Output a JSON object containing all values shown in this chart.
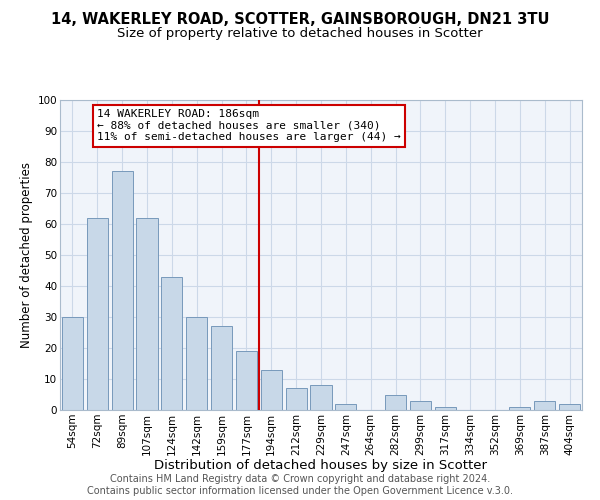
{
  "title": "14, WAKERLEY ROAD, SCOTTER, GAINSBOROUGH, DN21 3TU",
  "subtitle": "Size of property relative to detached houses in Scotter",
  "xlabel": "Distribution of detached houses by size in Scotter",
  "ylabel": "Number of detached properties",
  "bar_labels": [
    "54sqm",
    "72sqm",
    "89sqm",
    "107sqm",
    "124sqm",
    "142sqm",
    "159sqm",
    "177sqm",
    "194sqm",
    "212sqm",
    "229sqm",
    "247sqm",
    "264sqm",
    "282sqm",
    "299sqm",
    "317sqm",
    "334sqm",
    "352sqm",
    "369sqm",
    "387sqm",
    "404sqm"
  ],
  "bar_values": [
    30,
    62,
    77,
    62,
    43,
    30,
    27,
    19,
    13,
    7,
    8,
    2,
    0,
    5,
    3,
    1,
    0,
    0,
    1,
    3,
    2
  ],
  "bar_color": "#c8d8e8",
  "bar_edge_color": "#7799bb",
  "vline_color": "#cc0000",
  "annotation_box_text": "14 WAKERLEY ROAD: 186sqm\n← 88% of detached houses are smaller (340)\n11% of semi-detached houses are larger (44) →",
  "annotation_box_facecolor": "white",
  "annotation_box_edgecolor": "#cc0000",
  "ylim": [
    0,
    100
  ],
  "grid_color": "#ccd8e8",
  "footer_line1": "Contains HM Land Registry data © Crown copyright and database right 2024.",
  "footer_line2": "Contains public sector information licensed under the Open Government Licence v.3.0.",
  "title_fontsize": 10.5,
  "subtitle_fontsize": 9.5,
  "xlabel_fontsize": 9.5,
  "ylabel_fontsize": 8.5,
  "tick_fontsize": 7.5,
  "annotation_fontsize": 8.0,
  "footer_fontsize": 7.0,
  "bg_color": "#f0f4fa"
}
